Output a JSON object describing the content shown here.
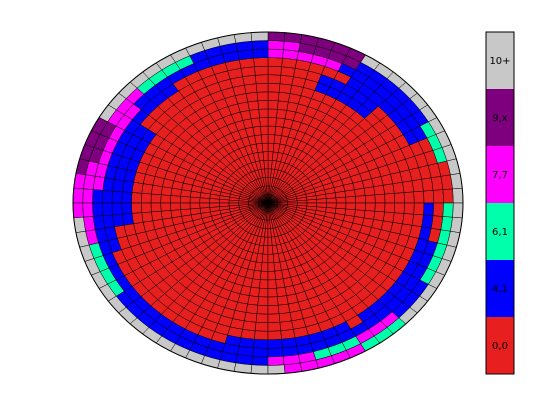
{
  "chart_data": {
    "type": "heatmap",
    "projection": "polar",
    "rings": 20,
    "sectors": 72,
    "grid": true,
    "colorbar": {
      "placement": "right",
      "labels": [
        "10+",
        "9,x",
        "7,7",
        "6,1",
        "4,1",
        "0,0"
      ],
      "colors": [
        "#c8c8c8",
        "#7f007f",
        "#ff00ff",
        "#00ffaa",
        "#0000ff",
        "#e81f1f"
      ]
    },
    "ring_color_index": [
      {
        "ring": 19,
        "sector_index": [
          0,
          0,
          0,
          0,
          0,
          0,
          0,
          0,
          0,
          0,
          0,
          0,
          1,
          1,
          1,
          1,
          1,
          1,
          0,
          0,
          0,
          0,
          0,
          0,
          0,
          0,
          0,
          0,
          0,
          0,
          1,
          1,
          1,
          1,
          2,
          2,
          2,
          0,
          0,
          0,
          0,
          0,
          0,
          0,
          0,
          0,
          0,
          0,
          0,
          0,
          0,
          0,
          0,
          0,
          0,
          2,
          2,
          2,
          2,
          2,
          3,
          3,
          3,
          0,
          0,
          0,
          0,
          0,
          0,
          0,
          0,
          0
        ]
      },
      {
        "ring": 18,
        "sector_index": [
          5,
          5,
          5,
          3,
          3,
          3,
          4,
          4,
          4,
          4,
          4,
          4,
          1,
          1,
          1,
          1,
          2,
          2,
          4,
          4,
          4,
          4,
          4,
          3,
          3,
          3,
          3,
          2,
          2,
          2,
          1,
          1,
          1,
          2,
          2,
          2,
          2,
          2,
          2,
          3,
          3,
          3,
          3,
          4,
          4,
          4,
          4,
          4,
          4,
          4,
          4,
          4,
          4,
          4,
          2,
          2,
          2,
          3,
          3,
          3,
          2,
          2,
          2,
          4,
          4,
          4,
          3,
          3,
          3,
          3,
          3,
          3
        ]
      },
      {
        "ring": 17,
        "sector_index": [
          5,
          5,
          5,
          5,
          5,
          4,
          4,
          4,
          4,
          4,
          4,
          4,
          4,
          2,
          2,
          2,
          2,
          2,
          4,
          4,
          4,
          4,
          4,
          4,
          4,
          4,
          4,
          4,
          2,
          2,
          2,
          2,
          2,
          2,
          2,
          4,
          4,
          4,
          4,
          4,
          4,
          4,
          4,
          4,
          4,
          4,
          4,
          4,
          4,
          4,
          4,
          4,
          4,
          4,
          4,
          4,
          4,
          4,
          4,
          4,
          4,
          4,
          4,
          4,
          4,
          4,
          4,
          4,
          4,
          5,
          5,
          5
        ]
      }
    ]
  }
}
